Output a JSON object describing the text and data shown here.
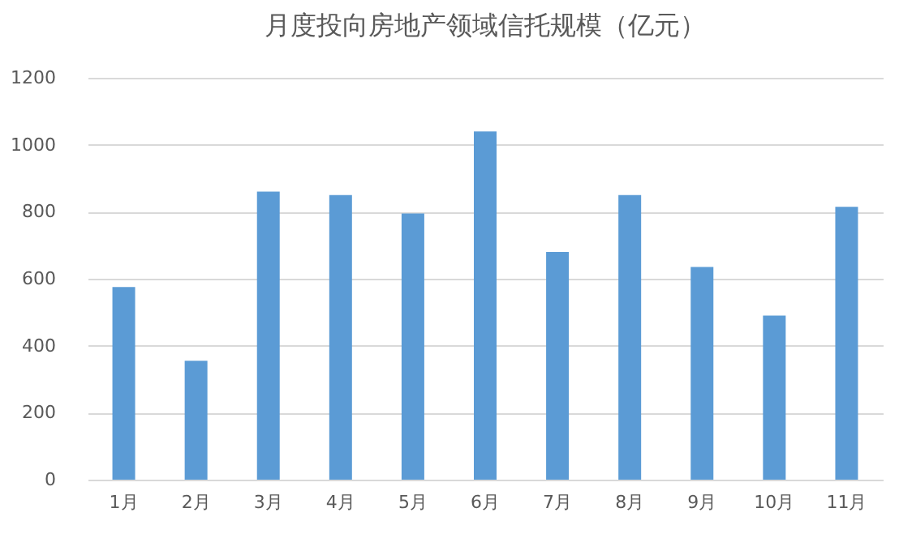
{
  "chart_data": {
    "type": "bar",
    "title": "月度投向房地产领域信托规模（亿元）",
    "categories": [
      "1月",
      "2月",
      "3月",
      "4月",
      "5月",
      "6月",
      "7月",
      "8月",
      "9月",
      "10月",
      "11月"
    ],
    "values": [
      575,
      355,
      860,
      850,
      795,
      1040,
      680,
      850,
      635,
      490,
      815
    ],
    "color": "#5b9bd5",
    "ylim": [
      0,
      1200
    ],
    "yticks": [
      0,
      200,
      400,
      600,
      800,
      1000,
      1200
    ],
    "grid": "y"
  }
}
